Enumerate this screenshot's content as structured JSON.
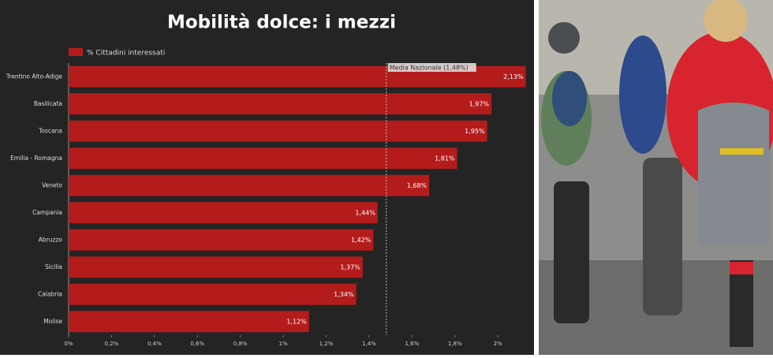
{
  "chart_data": {
    "type": "hbar",
    "title": "Mobilità dolce: i mezzi",
    "categories": [
      "Trentino Alto-Adige",
      "Basilicata",
      "Toscana",
      "Emilia - Romagna",
      "Veneto",
      "Campania",
      "Abruzzo",
      "Sicilia",
      "Calabria",
      "Molise"
    ],
    "series": [
      {
        "name": "% Cittadini interessati",
        "color": "#b41c1c",
        "values": [
          2.13,
          1.97,
          1.95,
          1.81,
          1.68,
          1.44,
          1.42,
          1.37,
          1.34,
          1.12
        ],
        "value_labels": [
          "2,13%",
          "1,97%",
          "1,95%",
          "1,81%",
          "1,68%",
          "1,44%",
          "1,42%",
          "1,37%",
          "1,34%",
          "1,12%"
        ]
      }
    ],
    "xlim": [
      0,
      2.15
    ],
    "xticks": [
      {
        "value": 0,
        "label": "0%"
      },
      {
        "value": 0.2,
        "label": "0,2%"
      },
      {
        "value": 0.4,
        "label": "0,4%"
      },
      {
        "value": 0.6,
        "label": "0,6%"
      },
      {
        "value": 0.8,
        "label": "0,8%"
      },
      {
        "value": 1,
        "label": "1%"
      },
      {
        "value": 1.2,
        "label": "1,2%"
      },
      {
        "value": 1.4,
        "label": "1,4%"
      },
      {
        "value": 1.6,
        "label": "1,6%"
      },
      {
        "value": 1.8,
        "label": "1,8%"
      },
      {
        "value": 2,
        "label": "2%"
      }
    ],
    "reference_line": {
      "value": 1.48,
      "label": "Media Nazionale (1,48%)"
    },
    "legend": "top-left"
  }
}
